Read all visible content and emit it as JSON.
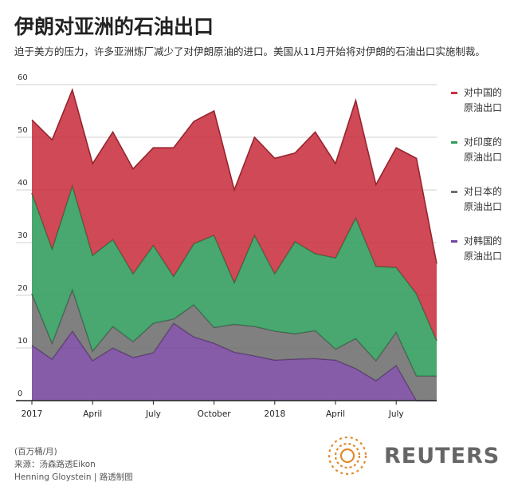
{
  "chart_data": {
    "type": "stacked-area",
    "title": "伊朗对亚洲的石油出口",
    "subtitle": "迫于美方的压力，许多亚洲炼厂减少了对伊朗原油的进口。美国从11月开始将对伊朗的石油出口实施制裁。",
    "categories": [
      "2017",
      null,
      null,
      "April",
      null,
      null,
      "July",
      null,
      null,
      "October",
      null,
      null,
      "2018",
      null,
      null,
      "April",
      null,
      null,
      "July",
      null,
      null
    ],
    "series": [
      {
        "name": "对中国的原油出口",
        "color": "#c9303f",
        "values": [
          13.9,
          20.7,
          18.2,
          17.4,
          20.4,
          19.9,
          18.5,
          24.4,
          23.2,
          23.6,
          17.6,
          18.6,
          21.9,
          16.8,
          23.1,
          17.9,
          22.3,
          15.5,
          22.7,
          25.7,
          14.6
        ]
      },
      {
        "name": "对印度的原油出口",
        "color": "#2f9c5c",
        "values": [
          19.1,
          17.9,
          19.7,
          18.2,
          16.5,
          12.9,
          14.8,
          8.1,
          11.6,
          17.5,
          7.9,
          17.3,
          10.9,
          17.5,
          14.6,
          17.3,
          22.9,
          17.9,
          12.3,
          15.6,
          6.7
        ]
      },
      {
        "name": "对日本的原油出口",
        "color": "#6e6e6e",
        "values": [
          9.8,
          3.0,
          7.9,
          1.8,
          4.1,
          3.0,
          5.6,
          0.8,
          6.1,
          3.0,
          5.3,
          5.6,
          5.5,
          4.8,
          5.3,
          2.1,
          5.7,
          3.8,
          6.3,
          4.7,
          4.7
        ]
      },
      {
        "name": "对韩国的原油出口",
        "color": "#75449b",
        "values": [
          10.5,
          7.9,
          13.2,
          7.6,
          10.0,
          8.2,
          9.1,
          14.7,
          12.1,
          10.9,
          9.2,
          8.5,
          7.7,
          7.9,
          8.0,
          7.7,
          6.1,
          3.8,
          6.7,
          0,
          0
        ]
      }
    ],
    "ylim": [
      0,
      60
    ],
    "yticks": [
      0,
      10,
      20,
      30,
      40,
      50,
      60
    ],
    "grid": true,
    "unit": "(百万桶/月)",
    "source": "来源：汤森路透Eikon",
    "credit": "Henning Gloystein | 路透制图",
    "brand": "REUTERS"
  }
}
